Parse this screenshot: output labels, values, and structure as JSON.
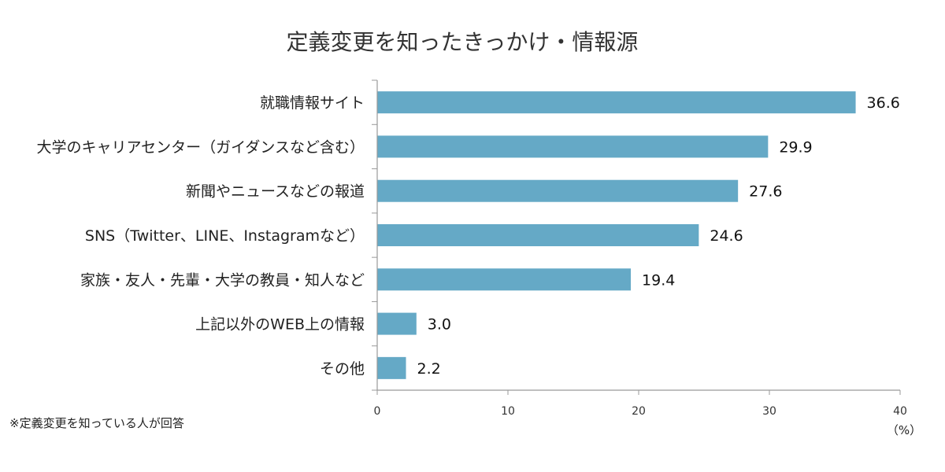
{
  "chart_data": {
    "type": "bar",
    "orientation": "horizontal",
    "title": "定義変更を知ったきっかけ・情報源",
    "categories": [
      "就職情報サイト",
      "大学のキャリアセンター（ガイダンスなど含む）",
      "新聞やニュースなどの報道",
      "SNS（Twitter、LINE、Instagramなど）",
      "家族・友人・先輩・大学の教員・知人など",
      "上記以外のWEB上の情報",
      "その他"
    ],
    "values": [
      36.6,
      29.9,
      27.6,
      24.6,
      19.4,
      3.0,
      2.2
    ],
    "value_labels": [
      "36.6",
      "29.9",
      "27.6",
      "24.6",
      "19.4",
      "3.0",
      "2.2"
    ],
    "xlim": [
      0,
      40
    ],
    "xticks": [
      "0",
      "10",
      "20",
      "30",
      "40"
    ],
    "xunit": "（%）",
    "bar_color": "#65a9c6",
    "grid": false
  },
  "footnote": "※定義変更を知っている人が回答"
}
